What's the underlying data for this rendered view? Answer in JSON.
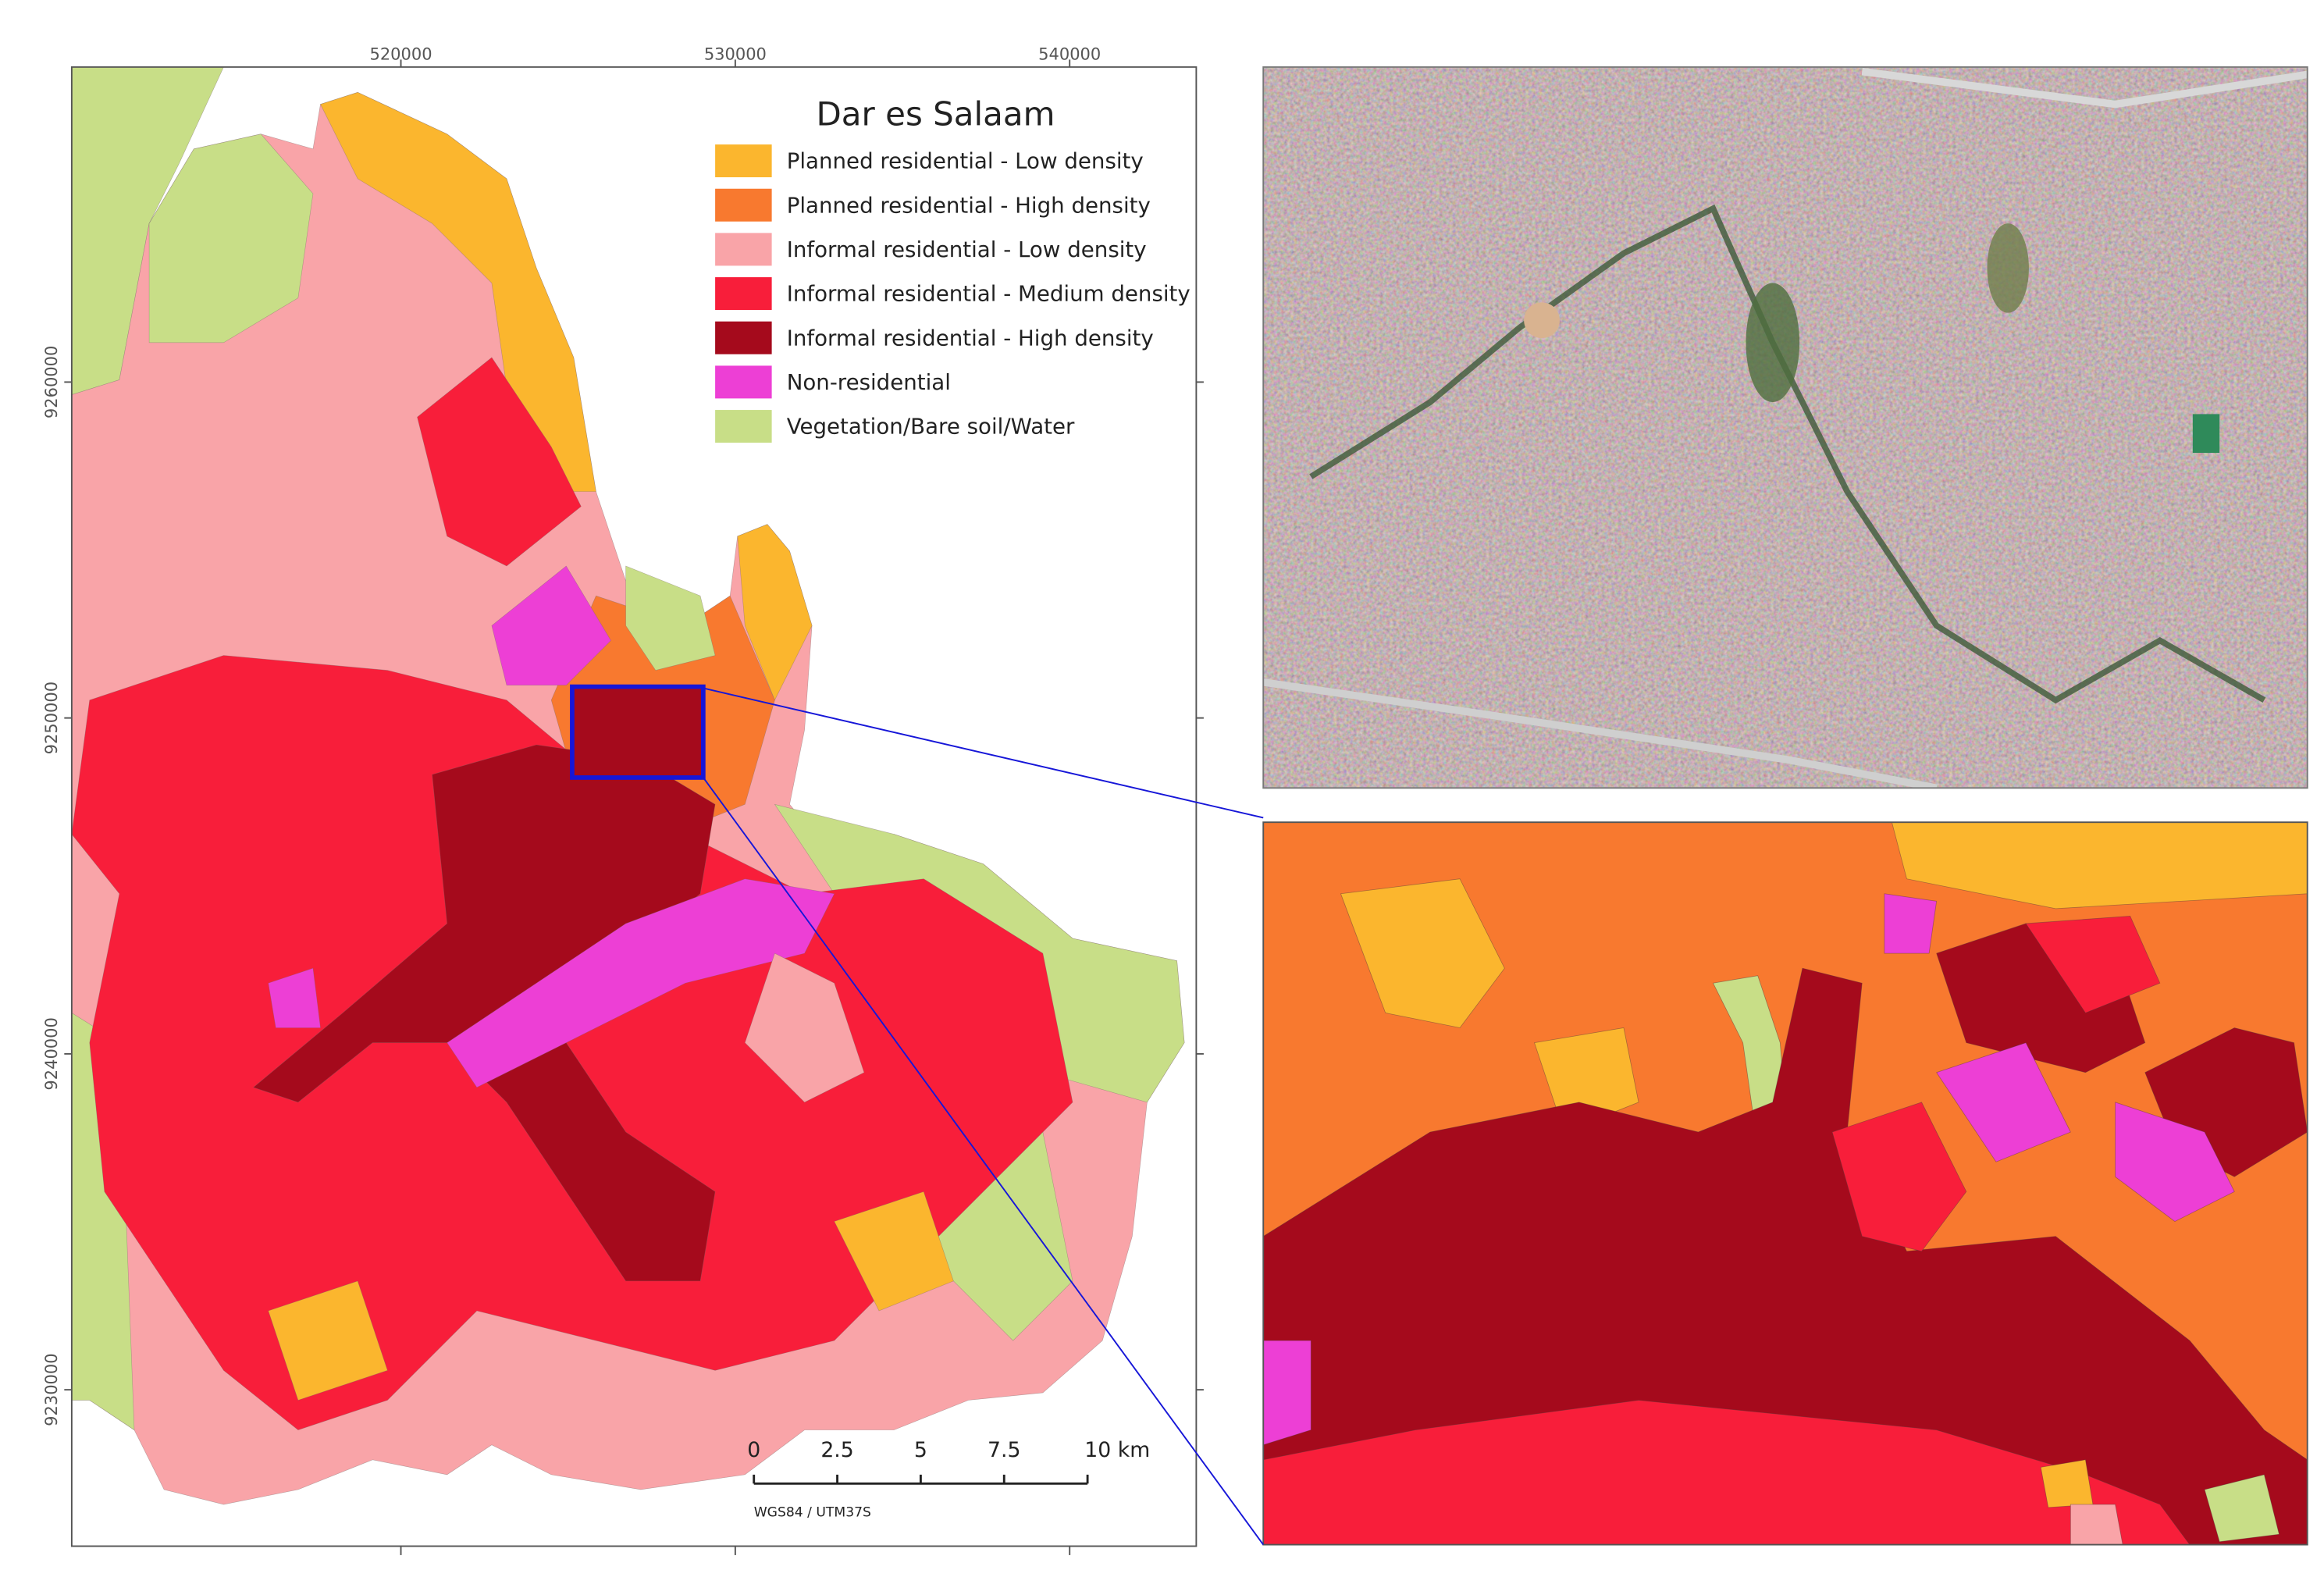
{
  "map": {
    "title": "Dar es Salaam",
    "legend": [
      {
        "label": "Planned residential - Low density",
        "color": "#fbb62e"
      },
      {
        "label": "Planned residential - High density",
        "color": "#f8792f"
      },
      {
        "label": "Informal residential - Low density",
        "color": "#f9a4a8"
      },
      {
        "label": "Informal residential - Medium density",
        "color": "#f81e3a"
      },
      {
        "label": "Informal residential - High density",
        "color": "#a50a1c"
      },
      {
        "label": "Non-residential",
        "color": "#ed3fd5"
      },
      {
        "label": "Vegetation/Bare soil/Water",
        "color": "#c8de87"
      }
    ],
    "xticks": [
      520000,
      530000,
      540000
    ],
    "yticks": [
      9260000,
      9250000,
      9240000,
      9230000
    ],
    "scale_bar": {
      "ticks": [
        0,
        2.5,
        5,
        7.5,
        {
          "value": 10,
          "label": "10 km"
        }
      ],
      "crs": "WGS84 / UTM37S"
    }
  }
}
